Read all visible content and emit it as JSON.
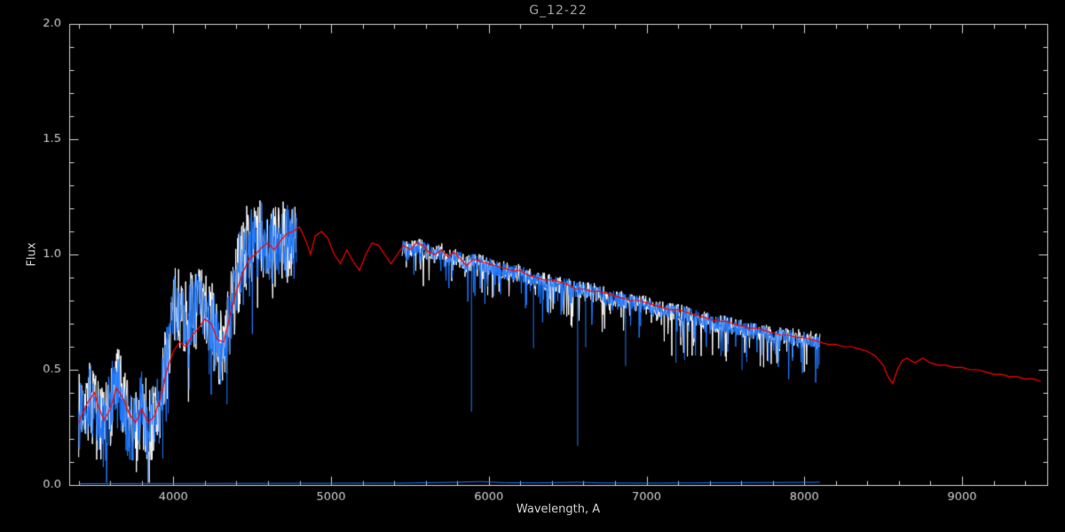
{
  "chart_data": {
    "type": "line",
    "title": "G_12-22",
    "xlabel": "Wavelength, A",
    "ylabel": "Flux",
    "xlim": [
      3340,
      9540
    ],
    "ylim": [
      0.0,
      2.0
    ],
    "xticks": [
      {
        "v": 4000,
        "label": "4000"
      },
      {
        "v": 5000,
        "label": "5000"
      },
      {
        "v": 6000,
        "label": "6000"
      },
      {
        "v": 7000,
        "label": "7000"
      },
      {
        "v": 8000,
        "label": "8000"
      },
      {
        "v": 9000,
        "label": "9000"
      }
    ],
    "yticks": [
      {
        "v": 0.0,
        "label": "0.0"
      },
      {
        "v": 0.5,
        "label": "0.5"
      },
      {
        "v": 1.0,
        "label": "1.0"
      },
      {
        "v": 1.5,
        "label": "1.5"
      },
      {
        "v": 2.0,
        "label": "2.0"
      }
    ],
    "x_minor_step": 200,
    "y_minor_step": 0.1,
    "background": "#000000",
    "axis_color": "#d2d2d2",
    "title_color": "#a0a0a0",
    "legend": "none",
    "grid": false,
    "series": [
      {
        "name": "observed-spectrum-white",
        "type": "noisy-line",
        "color": "#ffffff",
        "seed": 7,
        "amp_scale": 1.15
      },
      {
        "name": "observed-spectrum-blue",
        "type": "noisy-line",
        "color": "#1e78ff",
        "seed": 13,
        "amp_scale": 1.0
      }
    ],
    "observed_segments": [
      [
        3400,
        4780
      ],
      [
        5450,
        8100
      ]
    ],
    "observed_base": [
      [
        3400,
        0.3
      ],
      [
        3440,
        0.38
      ],
      [
        3480,
        0.36
      ],
      [
        3520,
        0.28
      ],
      [
        3560,
        0.22
      ],
      [
        3600,
        0.35
      ],
      [
        3640,
        0.45
      ],
      [
        3680,
        0.35
      ],
      [
        3720,
        0.25
      ],
      [
        3760,
        0.22
      ],
      [
        3800,
        0.35
      ],
      [
        3840,
        0.25
      ],
      [
        3880,
        0.28
      ],
      [
        3920,
        0.35
      ],
      [
        3960,
        0.55
      ],
      [
        4000,
        0.75
      ],
      [
        4040,
        0.78
      ],
      [
        4080,
        0.72
      ],
      [
        4120,
        0.75
      ],
      [
        4160,
        0.78
      ],
      [
        4200,
        0.75
      ],
      [
        4240,
        0.72
      ],
      [
        4280,
        0.6
      ],
      [
        4320,
        0.58
      ],
      [
        4360,
        0.72
      ],
      [
        4400,
        0.88
      ],
      [
        4440,
        1.0
      ],
      [
        4480,
        1.05
      ],
      [
        4520,
        1.05
      ],
      [
        4560,
        1.08
      ],
      [
        4600,
        1.05
      ],
      [
        4640,
        1.02
      ],
      [
        4680,
        1.05
      ],
      [
        4720,
        1.06
      ],
      [
        4780,
        1.05
      ],
      [
        5450,
        1.03
      ],
      [
        5500,
        1.02
      ],
      [
        5550,
        1.03
      ],
      [
        5600,
        1.02
      ],
      [
        5650,
        1.0
      ],
      [
        5700,
        1.01
      ],
      [
        5750,
        0.99
      ],
      [
        5800,
        0.99
      ],
      [
        5850,
        0.96
      ],
      [
        5900,
        0.97
      ],
      [
        5950,
        0.96
      ],
      [
        6000,
        0.95
      ],
      [
        6050,
        0.94
      ],
      [
        6100,
        0.93
      ],
      [
        6150,
        0.92
      ],
      [
        6200,
        0.92
      ],
      [
        6250,
        0.9
      ],
      [
        6300,
        0.89
      ],
      [
        6350,
        0.88
      ],
      [
        6400,
        0.88
      ],
      [
        6450,
        0.87
      ],
      [
        6500,
        0.86
      ],
      [
        6550,
        0.85
      ],
      [
        6600,
        0.85
      ],
      [
        6650,
        0.84
      ],
      [
        6700,
        0.83
      ],
      [
        6750,
        0.82
      ],
      [
        6800,
        0.81
      ],
      [
        6850,
        0.8
      ],
      [
        6900,
        0.79
      ],
      [
        6950,
        0.79
      ],
      [
        7000,
        0.78
      ],
      [
        7050,
        0.77
      ],
      [
        7100,
        0.76
      ],
      [
        7150,
        0.75
      ],
      [
        7200,
        0.75
      ],
      [
        7250,
        0.74
      ],
      [
        7300,
        0.73
      ],
      [
        7350,
        0.72
      ],
      [
        7400,
        0.71
      ],
      [
        7450,
        0.7
      ],
      [
        7500,
        0.7
      ],
      [
        7550,
        0.69
      ],
      [
        7600,
        0.68
      ],
      [
        7650,
        0.67
      ],
      [
        7700,
        0.67
      ],
      [
        7750,
        0.66
      ],
      [
        7800,
        0.65
      ],
      [
        7850,
        0.65
      ],
      [
        7900,
        0.64
      ],
      [
        7950,
        0.64
      ],
      [
        8000,
        0.63
      ],
      [
        8050,
        0.63
      ],
      [
        8100,
        0.62
      ]
    ],
    "noise_regions": [
      {
        "range": [
          3400,
          4780
        ],
        "amp": 0.16,
        "spike_prob": 0.05,
        "spike_depth": 0.3
      },
      {
        "range": [
          5450,
          8100
        ],
        "amp": 0.035,
        "spike_prob": 0.12,
        "spike_depth": 0.16
      }
    ],
    "absorption_lines": [
      [
        3933,
        0.3
      ],
      [
        3968,
        0.28
      ],
      [
        4101,
        0.32
      ],
      [
        4227,
        0.25
      ],
      [
        4340,
        0.3
      ],
      [
        5890,
        0.65
      ],
      [
        6283,
        0.3
      ],
      [
        6563,
        0.68
      ],
      [
        6614,
        0.25
      ],
      [
        6867,
        0.28
      ],
      [
        7186,
        0.22
      ],
      [
        7240,
        0.2
      ],
      [
        7605,
        0.18
      ],
      [
        7635,
        0.14
      ],
      [
        8094,
        0.1
      ]
    ],
    "model": {
      "name": "model-spectrum-red",
      "color": "#ff0000",
      "points": [
        [
          3400,
          0.27
        ],
        [
          3450,
          0.35
        ],
        [
          3500,
          0.4
        ],
        [
          3520,
          0.35
        ],
        [
          3560,
          0.28
        ],
        [
          3600,
          0.33
        ],
        [
          3640,
          0.42
        ],
        [
          3680,
          0.38
        ],
        [
          3720,
          0.31
        ],
        [
          3760,
          0.27
        ],
        [
          3800,
          0.33
        ],
        [
          3840,
          0.27
        ],
        [
          3880,
          0.3
        ],
        [
          3920,
          0.38
        ],
        [
          3960,
          0.5
        ],
        [
          4000,
          0.58
        ],
        [
          4040,
          0.62
        ],
        [
          4080,
          0.6
        ],
        [
          4120,
          0.65
        ],
        [
          4160,
          0.68
        ],
        [
          4200,
          0.72
        ],
        [
          4240,
          0.7
        ],
        [
          4280,
          0.63
        ],
        [
          4320,
          0.62
        ],
        [
          4360,
          0.74
        ],
        [
          4400,
          0.84
        ],
        [
          4440,
          0.92
        ],
        [
          4480,
          0.98
        ],
        [
          4520,
          1.0
        ],
        [
          4560,
          1.03
        ],
        [
          4600,
          1.05
        ],
        [
          4640,
          1.02
        ],
        [
          4680,
          1.06
        ],
        [
          4720,
          1.09
        ],
        [
          4760,
          1.1
        ],
        [
          4800,
          1.12
        ],
        [
          4840,
          1.06
        ],
        [
          4870,
          1.0
        ],
        [
          4900,
          1.08
        ],
        [
          4940,
          1.1
        ],
        [
          4980,
          1.07
        ],
        [
          5020,
          1.0
        ],
        [
          5060,
          0.96
        ],
        [
          5100,
          1.02
        ],
        [
          5140,
          0.97
        ],
        [
          5180,
          0.93
        ],
        [
          5220,
          1.0
        ],
        [
          5260,
          1.05
        ],
        [
          5300,
          1.04
        ],
        [
          5340,
          1.0
        ],
        [
          5380,
          0.96
        ],
        [
          5420,
          1.0
        ],
        [
          5460,
          1.04
        ],
        [
          5500,
          1.02
        ],
        [
          5540,
          1.05
        ],
        [
          5580,
          1.04
        ],
        [
          5620,
          1.01
        ],
        [
          5660,
          1.0
        ],
        [
          5700,
          1.02
        ],
        [
          5740,
          0.99
        ],
        [
          5780,
          1.01
        ],
        [
          5820,
          0.98
        ],
        [
          5860,
          0.95
        ],
        [
          5900,
          0.98
        ],
        [
          5950,
          0.97
        ],
        [
          6000,
          0.96
        ],
        [
          6050,
          0.95
        ],
        [
          6100,
          0.94
        ],
        [
          6150,
          0.93
        ],
        [
          6200,
          0.93
        ],
        [
          6250,
          0.91
        ],
        [
          6300,
          0.9
        ],
        [
          6350,
          0.89
        ],
        [
          6400,
          0.89
        ],
        [
          6450,
          0.88
        ],
        [
          6500,
          0.87
        ],
        [
          6550,
          0.85
        ],
        [
          6600,
          0.85
        ],
        [
          6650,
          0.84
        ],
        [
          6700,
          0.84
        ],
        [
          6750,
          0.83
        ],
        [
          6800,
          0.82
        ],
        [
          6850,
          0.81
        ],
        [
          6900,
          0.8
        ],
        [
          6950,
          0.8
        ],
        [
          7000,
          0.79
        ],
        [
          7050,
          0.78
        ],
        [
          7100,
          0.77
        ],
        [
          7150,
          0.76
        ],
        [
          7200,
          0.76
        ],
        [
          7250,
          0.75
        ],
        [
          7300,
          0.74
        ],
        [
          7350,
          0.73
        ],
        [
          7400,
          0.72
        ],
        [
          7450,
          0.71
        ],
        [
          7500,
          0.71
        ],
        [
          7550,
          0.7
        ],
        [
          7600,
          0.69
        ],
        [
          7650,
          0.68
        ],
        [
          7700,
          0.68
        ],
        [
          7750,
          0.67
        ],
        [
          7800,
          0.66
        ],
        [
          7850,
          0.65
        ],
        [
          7900,
          0.65
        ],
        [
          7950,
          0.64
        ],
        [
          8000,
          0.64
        ],
        [
          8050,
          0.63
        ],
        [
          8100,
          0.62
        ],
        [
          8150,
          0.61
        ],
        [
          8200,
          0.61
        ],
        [
          8250,
          0.6
        ],
        [
          8300,
          0.6
        ],
        [
          8350,
          0.59
        ],
        [
          8400,
          0.58
        ],
        [
          8450,
          0.56
        ],
        [
          8500,
          0.52
        ],
        [
          8530,
          0.47
        ],
        [
          8560,
          0.44
        ],
        [
          8590,
          0.5
        ],
        [
          8620,
          0.54
        ],
        [
          8650,
          0.55
        ],
        [
          8700,
          0.53
        ],
        [
          8750,
          0.55
        ],
        [
          8800,
          0.53
        ],
        [
          8850,
          0.52
        ],
        [
          8900,
          0.52
        ],
        [
          8950,
          0.51
        ],
        [
          9000,
          0.51
        ],
        [
          9050,
          0.5
        ],
        [
          9100,
          0.5
        ],
        [
          9150,
          0.49
        ],
        [
          9200,
          0.48
        ],
        [
          9250,
          0.48
        ],
        [
          9300,
          0.47
        ],
        [
          9350,
          0.47
        ],
        [
          9400,
          0.46
        ],
        [
          9450,
          0.46
        ],
        [
          9500,
          0.45
        ]
      ]
    },
    "error_spectrum": {
      "name": "error-spectrum-blue",
      "color": "#1e78ff",
      "points": [
        [
          3400,
          0.006
        ],
        [
          4500,
          0.007
        ],
        [
          5450,
          0.008
        ],
        [
          5800,
          0.012
        ],
        [
          5950,
          0.015
        ],
        [
          6100,
          0.01
        ],
        [
          6300,
          0.009
        ],
        [
          6560,
          0.012
        ],
        [
          6700,
          0.009
        ],
        [
          7000,
          0.008
        ],
        [
          7600,
          0.01
        ],
        [
          8100,
          0.012
        ]
      ]
    }
  }
}
